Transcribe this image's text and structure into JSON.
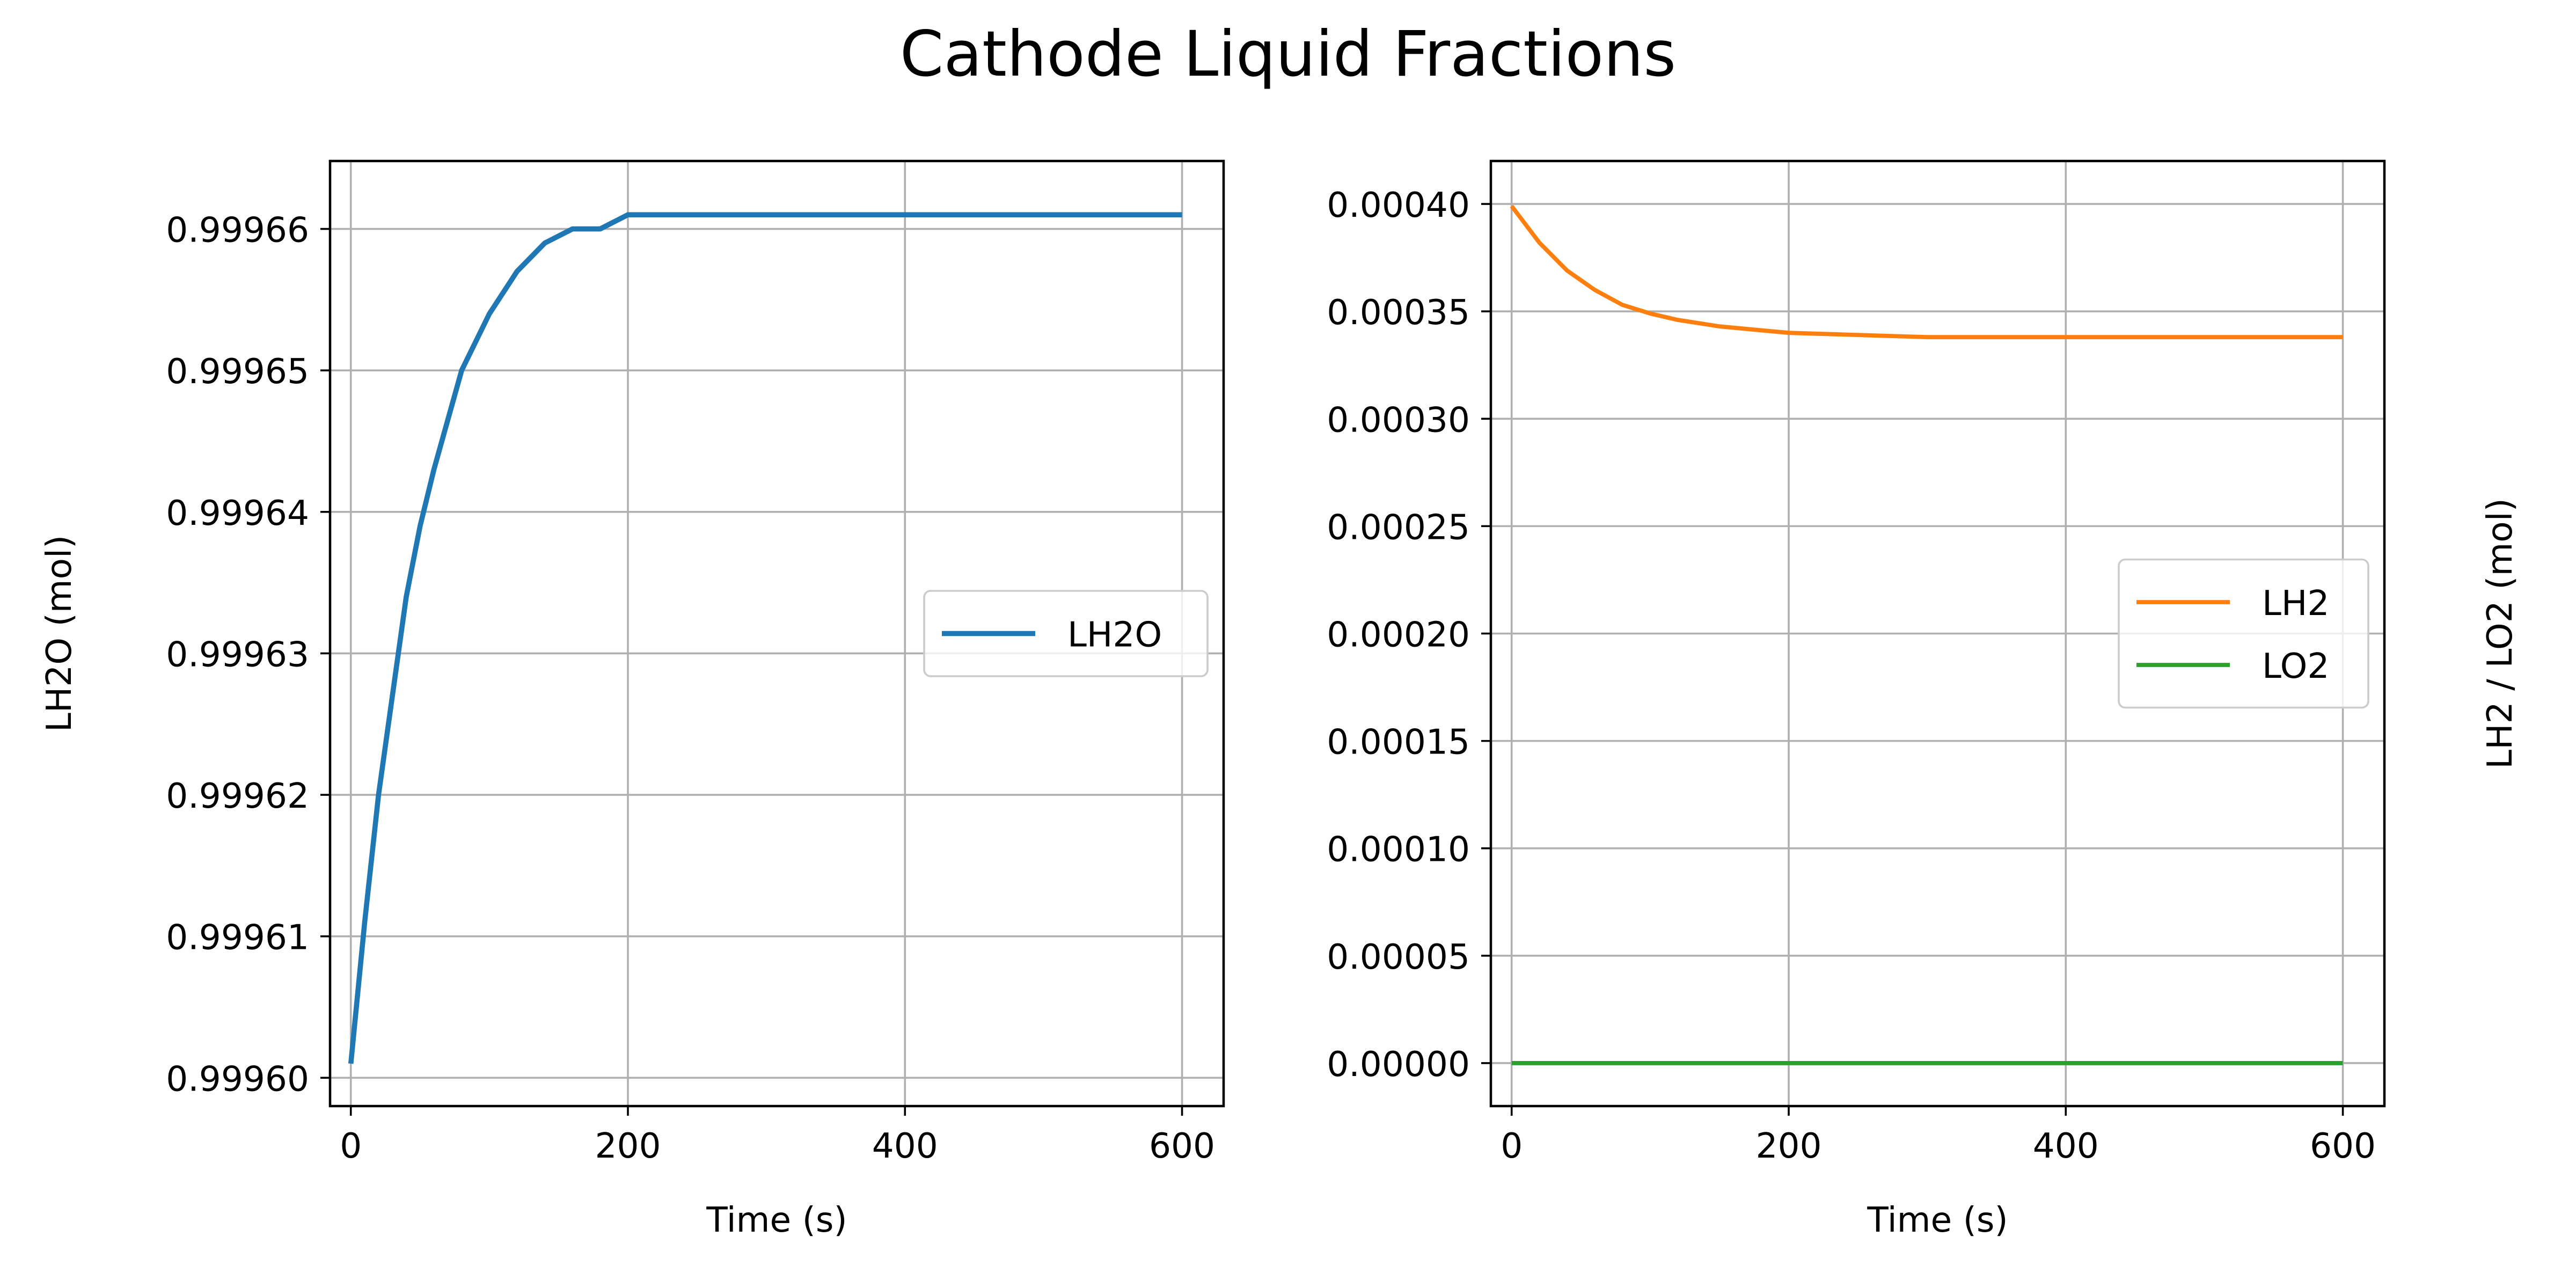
{
  "figure": {
    "title": "Cathode Liquid Fractions"
  },
  "chart_data": [
    {
      "type": "line",
      "xlabel": "Time (s)",
      "ylabel": "LH2O (mol)",
      "xlim": [
        -15,
        630
      ],
      "ylim": [
        0.999598,
        0.9996648
      ],
      "xticks": [
        0,
        200,
        400,
        600
      ],
      "xtick_labels": [
        "0",
        "200",
        "400",
        "600"
      ],
      "yticks": [
        0.9996,
        0.99961,
        0.99962,
        0.99963,
        0.99964,
        0.99965,
        0.99966
      ],
      "ytick_labels": [
        "0.99960",
        "0.99961",
        "0.99962",
        "0.99963",
        "0.99964",
        "0.99965",
        "0.99966"
      ],
      "grid": true,
      "legend_position": "center right",
      "series": [
        {
          "name": "LH2O",
          "color": "#1f77b4",
          "x": [
            0,
            10,
            20,
            30,
            40,
            50,
            60,
            80,
            100,
            120,
            140,
            160,
            180,
            200,
            250,
            300,
            350,
            400,
            450,
            500,
            550,
            600
          ],
          "y": [
            0.999601,
            0.999611,
            0.99962,
            0.999627,
            0.999634,
            0.999639,
            0.999643,
            0.99965,
            0.999654,
            0.999657,
            0.999659,
            0.99966,
            0.99966,
            0.999661,
            0.999661,
            0.999661,
            0.999661,
            0.999661,
            0.999661,
            0.999661,
            0.999661,
            0.999661
          ]
        }
      ]
    },
    {
      "type": "line",
      "xlabel": "Time (s)",
      "ylabel": "LH2 / LO2 (mol)",
      "xlim": [
        -15,
        630
      ],
      "ylim": [
        -2e-05,
        0.00042
      ],
      "xticks": [
        0,
        200,
        400,
        600
      ],
      "xtick_labels": [
        "0",
        "200",
        "400",
        "600"
      ],
      "yticks": [
        0,
        5e-05,
        0.0001,
        0.00015,
        0.0002,
        0.00025,
        0.0003,
        0.00035,
        0.0004
      ],
      "ytick_labels": [
        "0.00000",
        "0.00005",
        "0.00010",
        "0.00015",
        "0.00020",
        "0.00025",
        "0.00030",
        "0.00035",
        "0.00040"
      ],
      "grid": true,
      "legend_position": "center right",
      "series": [
        {
          "name": "LH2",
          "color": "#ff7f0e",
          "x": [
            0,
            20,
            40,
            60,
            80,
            100,
            120,
            150,
            200,
            250,
            300,
            400,
            500,
            600
          ],
          "y": [
            0.000399,
            0.000382,
            0.000369,
            0.00036,
            0.000353,
            0.000349,
            0.000346,
            0.000343,
            0.00034,
            0.000339,
            0.000338,
            0.000338,
            0.000338,
            0.000338
          ]
        },
        {
          "name": "LO2",
          "color": "#2ca02c",
          "x": [
            0,
            200,
            400,
            600
          ],
          "y": [
            0.0,
            0.0,
            0.0,
            0.0
          ]
        }
      ]
    }
  ]
}
